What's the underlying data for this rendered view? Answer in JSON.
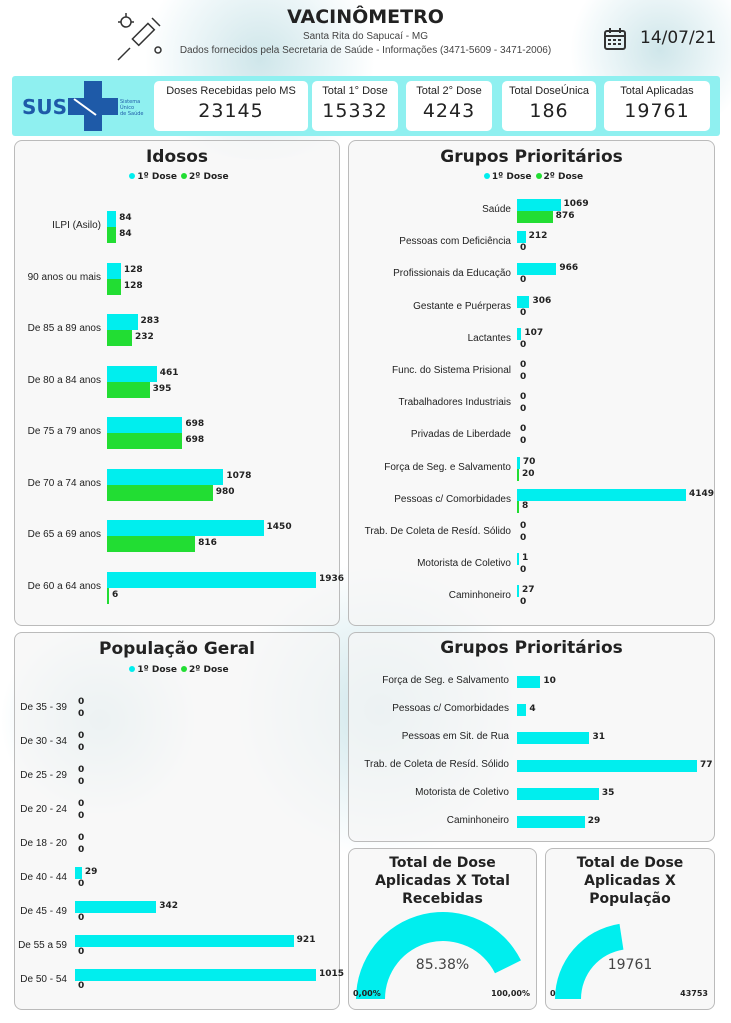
{
  "header": {
    "title": "VACINÔMETRO",
    "city": "Santa Rita do Sapucaí - MG",
    "source": "Dados fornecidos pela Secretaria de Saúde - Informações (3471-5609 - 3471-2006)",
    "date": "14/07/21",
    "icons": [
      "syringe-virus-icon",
      "calendar-icon"
    ]
  },
  "logo": {
    "text": "SUS",
    "subtext": "Sistema Único de Saúde"
  },
  "kpis": [
    {
      "label": "Doses Recebidas pelo MS",
      "value": "23145"
    },
    {
      "label": "Total 1° Dose",
      "value": "15332"
    },
    {
      "label": "Total 2° Dose",
      "value": "4243"
    },
    {
      "label": "Total DoseÚnica",
      "value": "186"
    },
    {
      "label": "Total Aplicadas",
      "value": "19761"
    }
  ],
  "colors": {
    "dose1": "#00eeee",
    "dose2": "#22dd33",
    "kpi_band": "#8ff0f0"
  },
  "chart_data": [
    {
      "id": "idosos",
      "type": "bar",
      "orientation": "horizontal",
      "title": "Idosos",
      "legend": [
        "1º Dose",
        "2º Dose"
      ],
      "categories": [
        "ILPI (Asilo)",
        "90 anos ou mais",
        "De 85 a 89 anos",
        "De 80 a 84 anos",
        "De 75 a 79 anos",
        "De 70 a 74 anos",
        "De 65 a 69 anos",
        "De 60 a 64 anos"
      ],
      "series": [
        {
          "name": "1º Dose",
          "values": [
            84,
            128,
            283,
            461,
            698,
            1078,
            1450,
            1936
          ]
        },
        {
          "name": "2º Dose",
          "values": [
            84,
            128,
            232,
            395,
            698,
            980,
            816,
            6
          ]
        }
      ]
    },
    {
      "id": "grupos",
      "type": "bar",
      "orientation": "horizontal",
      "title": "Grupos Prioritários",
      "legend": [
        "1º Dose",
        "2º Dose"
      ],
      "categories": [
        "Saúde",
        "Pessoas com Deficiência",
        "Profissionais da Educação",
        "Gestante e Puérperas",
        "Lactantes",
        "Func. do Sistema Prisional",
        "Trabalhadores Industriais",
        "Privadas de Liberdade",
        "Força de Seg. e Salvamento",
        "Pessoas c/ Comorbidades",
        "Trab. De Coleta de Resíd. Sólido",
        "Motorista de Coletivo",
        "Caminhoneiro"
      ],
      "series": [
        {
          "name": "1º Dose",
          "values": [
            1069,
            212,
            966,
            306,
            107,
            0,
            0,
            0,
            70,
            4149,
            0,
            1,
            27
          ]
        },
        {
          "name": "2º Dose",
          "values": [
            876,
            0,
            0,
            0,
            0,
            0,
            0,
            0,
            20,
            8,
            0,
            0,
            0
          ]
        }
      ]
    },
    {
      "id": "populacao",
      "type": "bar",
      "orientation": "horizontal",
      "title": "População Geral",
      "legend": [
        "1º Dose",
        "2º Dose"
      ],
      "categories": [
        "De 35 - 39",
        "De 30 - 34",
        "De 25 - 29",
        "De 20 - 24",
        "De 18 - 20",
        "De 40 - 44",
        "De 45 - 49",
        "De 55 a 59",
        "De 50 - 54"
      ],
      "series": [
        {
          "name": "1º Dose",
          "values": [
            0,
            0,
            0,
            0,
            0,
            29,
            342,
            921,
            1015
          ]
        },
        {
          "name": "2º Dose",
          "values": [
            0,
            0,
            0,
            0,
            0,
            0,
            0,
            0,
            0
          ]
        }
      ]
    },
    {
      "id": "grupos2",
      "type": "bar",
      "orientation": "horizontal",
      "title": "Grupos Prioritários",
      "legend": [],
      "categories": [
        "Força de Seg. e Salvamento",
        "Pessoas c/ Comorbidades",
        "Pessoas em Sit. de Rua",
        "Trab. de Coleta de Resíd. Sólido",
        "Motorista de Coletivo",
        "Caminhoneiro"
      ],
      "series": [
        {
          "values": [
            10,
            4,
            31,
            77,
            35,
            29
          ]
        }
      ]
    }
  ],
  "gauges": [
    {
      "title": "Total de Dose Aplicadas X Total Recebidas",
      "value_label": "85.38%",
      "value": 85.38,
      "min": 0,
      "max": 100,
      "min_label": "0,00%",
      "max_label": "100,00%"
    },
    {
      "title": "Total de Dose Aplicadas X População",
      "value_label": "19761",
      "value": 19761,
      "min": 0,
      "max": 43753,
      "min_label": "0",
      "max_label": "43753"
    }
  ]
}
